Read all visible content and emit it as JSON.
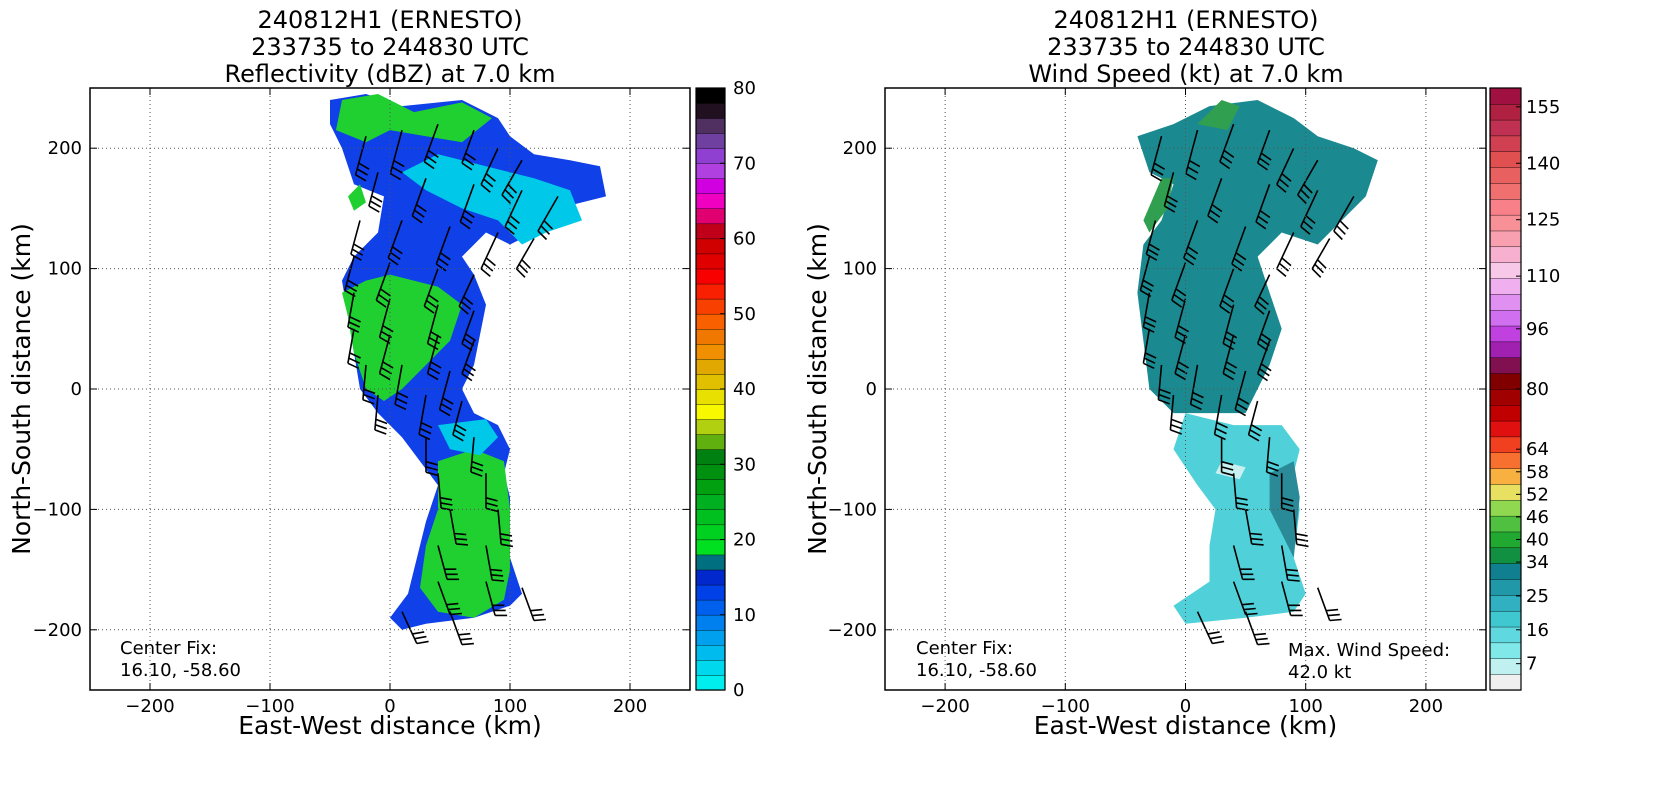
{
  "chart_data": [
    {
      "type": "heatmap",
      "title_lines": [
        "240812H1 (ERNESTO)",
        "233735 to 244830 UTC",
        "Reflectivity (dBZ) at 7.0 km"
      ],
      "xlabel": "East-West distance (km)",
      "ylabel": "North-South distance (km)",
      "xlim": [
        -250,
        250
      ],
      "ylim": [
        -250,
        250
      ],
      "xticks": [
        -200,
        -100,
        0,
        100,
        200
      ],
      "yticks": [
        -200,
        -100,
        0,
        100,
        200
      ],
      "grid": true,
      "annotations": {
        "center_fix_label": "Center Fix:",
        "center_fix_value": "16.10, -58.60"
      },
      "colorbar": {
        "range": [
          0,
          80
        ],
        "tick_values": [
          0,
          10,
          20,
          30,
          40,
          50,
          60,
          70,
          80
        ],
        "tick_labels": [
          "0",
          "10",
          "20",
          "30",
          "40",
          "50",
          "60",
          "70",
          "80"
        ],
        "colors": [
          "#00eeee",
          "#00d8ee",
          "#00bcee",
          "#00a0ee",
          "#0080ee",
          "#0060ee",
          "#0040e8",
          "#0028cc",
          "#007080",
          "#00e020",
          "#00d020",
          "#00c020",
          "#00b020",
          "#00a010",
          "#009010",
          "#008010",
          "#60b010",
          "#b0d010",
          "#f8f800",
          "#e8e000",
          "#e0c000",
          "#e0a800",
          "#f09000",
          "#f07800",
          "#f86000",
          "#f84000",
          "#f82000",
          "#f80000",
          "#e00000",
          "#d00000",
          "#c00018",
          "#e00070",
          "#f000c0",
          "#d000e0",
          "#b040e0",
          "#9040d0",
          "#7040a0",
          "#503060",
          "#201020",
          "#000000"
        ]
      },
      "regions": [
        {
          "color": "#1040e8",
          "points": [
            [
              -50,
              240
            ],
            [
              -20,
              245
            ],
            [
              10,
              235
            ],
            [
              60,
              240
            ],
            [
              90,
              225
            ],
            [
              100,
              210
            ],
            [
              120,
              195
            ],
            [
              150,
              190
            ],
            [
              175,
              185
            ],
            [
              180,
              160
            ],
            [
              140,
              150
            ],
            [
              120,
              130
            ],
            [
              100,
              120
            ],
            [
              80,
              130
            ],
            [
              60,
              110
            ],
            [
              70,
              95
            ],
            [
              80,
              70
            ],
            [
              75,
              45
            ],
            [
              70,
              20
            ],
            [
              60,
              0
            ],
            [
              70,
              -20
            ],
            [
              90,
              -30
            ],
            [
              100,
              -50
            ],
            [
              95,
              -70
            ],
            [
              100,
              -90
            ],
            [
              100,
              -140
            ],
            [
              110,
              -170
            ],
            [
              100,
              -180
            ],
            [
              70,
              -190
            ],
            [
              30,
              -195
            ],
            [
              10,
              -200
            ],
            [
              0,
              -190
            ],
            [
              15,
              -170
            ],
            [
              20,
              -150
            ],
            [
              30,
              -110
            ],
            [
              40,
              -80
            ],
            [
              10,
              -40
            ],
            [
              -10,
              -20
            ],
            [
              -25,
              0
            ],
            [
              -30,
              30
            ],
            [
              -35,
              60
            ],
            [
              -40,
              90
            ],
            [
              -30,
              110
            ],
            [
              -10,
              130
            ],
            [
              -5,
              160
            ],
            [
              -30,
              170
            ],
            [
              -40,
              200
            ],
            [
              -50,
              220
            ]
          ]
        },
        {
          "color": "#00c8e8",
          "points": [
            [
              10,
              180
            ],
            [
              40,
              195
            ],
            [
              80,
              185
            ],
            [
              120,
              175
            ],
            [
              150,
              165
            ],
            [
              160,
              140
            ],
            [
              130,
              130
            ],
            [
              110,
              120
            ],
            [
              90,
              140
            ],
            [
              60,
              150
            ],
            [
              30,
              165
            ]
          ]
        },
        {
          "color": "#20d030",
          "points": [
            [
              -40,
              80
            ],
            [
              -20,
              90
            ],
            [
              0,
              95
            ],
            [
              40,
              85
            ],
            [
              60,
              70
            ],
            [
              50,
              40
            ],
            [
              30,
              20
            ],
            [
              10,
              0
            ],
            [
              -5,
              -10
            ],
            [
              -20,
              0
            ],
            [
              -30,
              30
            ],
            [
              -35,
              60
            ]
          ]
        },
        {
          "color": "#20d030",
          "points": [
            [
              40,
              -60
            ],
            [
              70,
              -50
            ],
            [
              95,
              -60
            ],
            [
              100,
              -100
            ],
            [
              100,
              -150
            ],
            [
              95,
              -175
            ],
            [
              70,
              -190
            ],
            [
              40,
              -185
            ],
            [
              25,
              -165
            ],
            [
              30,
              -130
            ],
            [
              40,
              -100
            ]
          ]
        },
        {
          "color": "#20d030",
          "points": [
            [
              -40,
              240
            ],
            [
              -10,
              245
            ],
            [
              20,
              230
            ],
            [
              60,
              238
            ],
            [
              85,
              225
            ],
            [
              60,
              205
            ],
            [
              30,
              210
            ],
            [
              0,
              215
            ],
            [
              -20,
              205
            ],
            [
              -45,
              215
            ]
          ]
        },
        {
          "color": "#20d030",
          "points": [
            [
              -35,
              160
            ],
            [
              -25,
              170
            ],
            [
              -20,
              155
            ],
            [
              -30,
              148
            ]
          ]
        },
        {
          "color": "#00c8e8",
          "points": [
            [
              40,
              -30
            ],
            [
              80,
              -25
            ],
            [
              90,
              -40
            ],
            [
              75,
              -55
            ],
            [
              50,
              -50
            ]
          ]
        }
      ]
    },
    {
      "type": "heatmap",
      "title_lines": [
        "240812H1 (ERNESTO)",
        "233735 to 244830 UTC",
        "Wind Speed (kt) at 7.0 km"
      ],
      "xlabel": "East-West distance (km)",
      "ylabel": "North-South distance (km)",
      "xlim": [
        -250,
        250
      ],
      "ylim": [
        -250,
        250
      ],
      "xticks": [
        -200,
        -100,
        0,
        100,
        200
      ],
      "yticks": [
        -200,
        -100,
        0,
        100,
        200
      ],
      "grid": true,
      "annotations": {
        "center_fix_label": "Center Fix:",
        "center_fix_value": "16.10, -58.60",
        "max_wind_label": "Max. Wind Speed:",
        "max_wind_value": "42.0 kt"
      },
      "colorbar": {
        "range": [
          0,
          160
        ],
        "tick_values": [
          7,
          16,
          25,
          34,
          40,
          46,
          52,
          58,
          64,
          80,
          96,
          110,
          125,
          140,
          155
        ],
        "tick_labels": [
          "7",
          "16",
          "25",
          "34",
          "40",
          "46",
          "52",
          "58",
          "64",
          "80",
          "96",
          "110",
          "125",
          "140",
          "155"
        ],
        "colors": [
          "#f0f0f0",
          "#c0f0f0",
          "#80e8e8",
          "#60d8e0",
          "#40c8d0",
          "#30b0c0",
          "#2098a8",
          "#108090",
          "#109040",
          "#20a830",
          "#50c040",
          "#90d850",
          "#e8e060",
          "#f8b040",
          "#f87030",
          "#f04020",
          "#e01010",
          "#c00000",
          "#a00000",
          "#800000",
          "#801050",
          "#a020b0",
          "#c040e0",
          "#d070f0",
          "#e090f0",
          "#f0b0f0",
          "#f8c8e8",
          "#f8b0d0",
          "#f8a0b0",
          "#f89098",
          "#f88088",
          "#f07070",
          "#e86060",
          "#e05050",
          "#d04050",
          "#c03050",
          "#b02040",
          "#a01040"
        ]
      },
      "regions": [
        {
          "color": "#1a8a90",
          "points": [
            [
              -40,
              210
            ],
            [
              -10,
              220
            ],
            [
              20,
              235
            ],
            [
              60,
              240
            ],
            [
              90,
              225
            ],
            [
              110,
              210
            ],
            [
              140,
              200
            ],
            [
              160,
              190
            ],
            [
              150,
              160
            ],
            [
              130,
              140
            ],
            [
              110,
              120
            ],
            [
              80,
              130
            ],
            [
              60,
              110
            ],
            [
              70,
              80
            ],
            [
              80,
              50
            ],
            [
              70,
              20
            ],
            [
              60,
              0
            ],
            [
              50,
              -20
            ],
            [
              20,
              -20
            ],
            [
              -10,
              -20
            ],
            [
              -30,
              0
            ],
            [
              -35,
              40
            ],
            [
              -40,
              80
            ],
            [
              -35,
              120
            ],
            [
              -20,
              140
            ],
            [
              -10,
              170
            ],
            [
              -30,
              180
            ]
          ]
        },
        {
          "color": "#30a050",
          "points": [
            [
              -30,
              130
            ],
            [
              -15,
              150
            ],
            [
              -10,
              175
            ],
            [
              -20,
              175
            ],
            [
              -35,
              140
            ]
          ]
        },
        {
          "color": "#30a050",
          "points": [
            [
              10,
              220
            ],
            [
              30,
              240
            ],
            [
              45,
              235
            ],
            [
              35,
              215
            ]
          ]
        },
        {
          "color": "#50d0d8",
          "points": [
            [
              0,
              -20
            ],
            [
              40,
              -30
            ],
            [
              80,
              -30
            ],
            [
              95,
              -50
            ],
            [
              90,
              -70
            ],
            [
              95,
              -100
            ],
            [
              90,
              -140
            ],
            [
              100,
              -170
            ],
            [
              90,
              -185
            ],
            [
              50,
              -190
            ],
            [
              0,
              -195
            ],
            [
              -10,
              -180
            ],
            [
              20,
              -160
            ],
            [
              20,
              -130
            ],
            [
              25,
              -100
            ],
            [
              10,
              -80
            ],
            [
              -10,
              -50
            ]
          ]
        },
        {
          "color": "#2a8a98",
          "points": [
            [
              70,
              -70
            ],
            [
              90,
              -60
            ],
            [
              95,
              -90
            ],
            [
              90,
              -140
            ],
            [
              80,
              -120
            ],
            [
              70,
              -100
            ]
          ]
        },
        {
          "color": "#c8f0f0",
          "points": [
            [
              30,
              -60
            ],
            [
              50,
              -65
            ],
            [
              45,
              -75
            ],
            [
              25,
              -70
            ]
          ]
        }
      ]
    }
  ]
}
